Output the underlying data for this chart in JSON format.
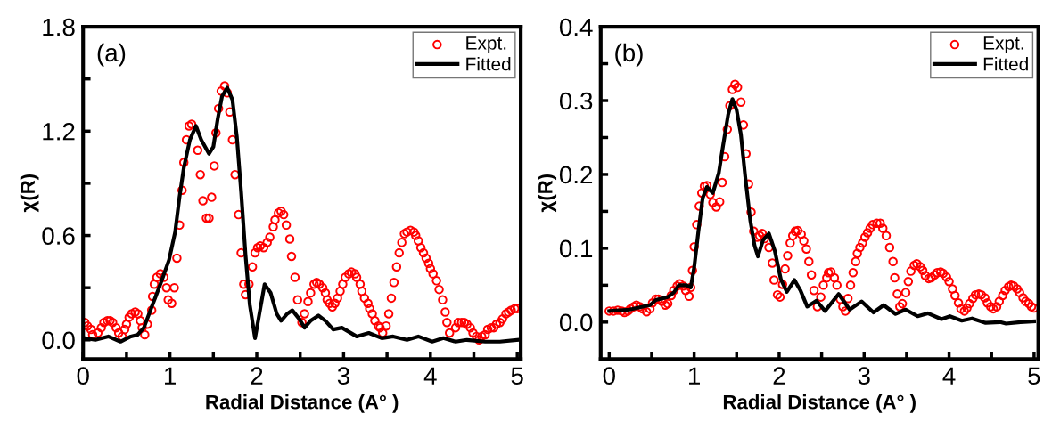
{
  "chart_data": [
    {
      "type": "scatter",
      "xlabel": "Radial Distance (A° )",
      "ylabel": "χ(R)",
      "annotations": [
        "(a)"
      ],
      "legend": "top right",
      "grid": false,
      "xlim": [
        0,
        5.04
      ],
      "ylim": [
        -0.11,
        1.8
      ],
      "xticks": [
        0,
        {
          "value": 0.5,
          "label": null
        },
        1,
        {
          "value": 1.5,
          "label": null
        },
        2,
        {
          "value": 2.5,
          "label": null
        },
        3,
        {
          "value": 3.5,
          "label": null
        },
        4,
        {
          "value": 4.5,
          "label": null
        },
        5
      ],
      "yticks": [
        {
          "value": 0,
          "label": "0.0"
        },
        {
          "value": 0.3,
          "label": null
        },
        {
          "value": 0.6,
          "label": "0.6"
        },
        {
          "value": 0.9,
          "label": null
        },
        {
          "value": 1.2,
          "label": "1.2"
        },
        {
          "value": 1.5,
          "label": null
        },
        {
          "value": 1.8,
          "label": "1.8"
        }
      ],
      "series": [
        {
          "name": "Expt.",
          "marker": "circle",
          "color": "#ff0000",
          "x": [
            0.02,
            0.05,
            0.09,
            0.11,
            0.17,
            0.21,
            0.24,
            0.28,
            0.31,
            0.34,
            0.38,
            0.41,
            0.45,
            0.48,
            0.5,
            0.53,
            0.56,
            0.6,
            0.63,
            0.66,
            0.68,
            0.71,
            0.74,
            0.79,
            0.8,
            0.82,
            0.85,
            0.89,
            0.93,
            0.96,
            0.98,
            1.02,
            1.05,
            1.08,
            1.11,
            1.14,
            1.16,
            1.19,
            1.22,
            1.25,
            1.32,
            1.35,
            1.38,
            1.42,
            1.45,
            1.48,
            1.51,
            1.53,
            1.56,
            1.59,
            1.63,
            1.66,
            1.69,
            1.72,
            1.75,
            1.79,
            1.82,
            1.85,
            1.87,
            1.91,
            1.95,
            1.98,
            2.01,
            2.04,
            2.08,
            2.12,
            2.15,
            2.19,
            2.21,
            2.25,
            2.28,
            2.31,
            2.34,
            2.38,
            2.4,
            2.44,
            2.47,
            2.52,
            2.55,
            2.59,
            2.62,
            2.66,
            2.69,
            2.72,
            2.76,
            2.79,
            2.81,
            2.84,
            2.87,
            2.9,
            2.93,
            2.96,
            2.99,
            3.02,
            3.06,
            3.09,
            3.13,
            3.15,
            3.19,
            3.21,
            3.24,
            3.28,
            3.3,
            3.33,
            3.36,
            3.4,
            3.42,
            3.45,
            3.49,
            3.52,
            3.55,
            3.58,
            3.61,
            3.64,
            3.67,
            3.7,
            3.73,
            3.77,
            3.81,
            3.83,
            3.86,
            3.89,
            3.92,
            3.95,
            3.98,
            4.0,
            4.03,
            4.07,
            4.1,
            4.14,
            4.17,
            4.19,
            4.22,
            4.29,
            4.32,
            4.36,
            4.39,
            4.42,
            4.46,
            4.49,
            4.53,
            4.56,
            4.59,
            4.63,
            4.66,
            4.7,
            4.73,
            4.76,
            4.8,
            4.83,
            4.87,
            4.9,
            4.93,
            4.97,
            5.0
          ],
          "values": [
            0.1,
            0.08,
            0.06,
            0.03,
            0.04,
            0.07,
            0.1,
            0.11,
            0.11,
            0.1,
            0.07,
            0.04,
            0.02,
            0.06,
            0.09,
            0.13,
            0.15,
            0.16,
            0.15,
            0.11,
            0.07,
            0.03,
            0.09,
            0.17,
            0.25,
            0.32,
            0.36,
            0.38,
            0.36,
            0.3,
            0.23,
            0.21,
            0.3,
            0.47,
            0.66,
            0.86,
            1.02,
            1.15,
            1.23,
            1.24,
            1.09,
            0.95,
            0.8,
            0.7,
            0.7,
            0.82,
            1.0,
            1.19,
            1.33,
            1.43,
            1.46,
            1.42,
            1.31,
            1.15,
            0.95,
            0.72,
            0.5,
            0.32,
            0.26,
            0.32,
            0.42,
            0.5,
            0.53,
            0.54,
            0.53,
            0.56,
            0.59,
            0.65,
            0.69,
            0.73,
            0.74,
            0.72,
            0.66,
            0.58,
            0.48,
            0.36,
            0.23,
            0.1,
            0.15,
            0.22,
            0.27,
            0.32,
            0.33,
            0.32,
            0.3,
            0.27,
            0.23,
            0.21,
            0.19,
            0.21,
            0.24,
            0.28,
            0.32,
            0.36,
            0.38,
            0.39,
            0.38,
            0.36,
            0.32,
            0.28,
            0.24,
            0.21,
            0.18,
            0.15,
            0.11,
            0.08,
            0.07,
            0.04,
            0.08,
            0.15,
            0.24,
            0.33,
            0.42,
            0.5,
            0.56,
            0.61,
            0.62,
            0.63,
            0.62,
            0.6,
            0.57,
            0.53,
            0.5,
            0.47,
            0.44,
            0.41,
            0.38,
            0.34,
            0.29,
            0.23,
            0.16,
            0.1,
            0.04,
            0.07,
            0.1,
            0.1,
            0.1,
            0.09,
            0.07,
            0.04,
            0.02,
            0.0,
            0.02,
            0.03,
            0.06,
            0.07,
            0.07,
            0.09,
            0.1,
            0.12,
            0.15,
            0.16,
            0.17,
            0.18,
            0.18
          ]
        },
        {
          "name": "Fitted",
          "type": "line",
          "marker": "none",
          "line_style": "solid",
          "color": "#000000",
          "x": [
            0.02,
            0.14,
            0.29,
            0.43,
            0.55,
            0.63,
            0.7,
            0.79,
            0.89,
            0.99,
            1.06,
            1.11,
            1.16,
            1.23,
            1.3,
            1.36,
            1.45,
            1.5,
            1.55,
            1.6,
            1.66,
            1.72,
            1.77,
            1.82,
            1.87,
            1.92,
            1.98,
            2.03,
            2.09,
            2.16,
            2.23,
            2.28,
            2.35,
            2.41,
            2.49,
            2.55,
            2.62,
            2.71,
            2.79,
            2.88,
            2.98,
            3.15,
            3.29,
            3.44,
            3.57,
            3.73,
            3.86,
            4.02,
            4.15,
            4.29,
            4.42,
            4.63,
            4.8,
            5.0
          ],
          "values": [
            0.01,
            0.0,
            0.02,
            -0.01,
            0.02,
            0.03,
            0.07,
            0.19,
            0.32,
            0.46,
            0.62,
            0.82,
            0.99,
            1.15,
            1.23,
            1.15,
            1.07,
            1.11,
            1.27,
            1.4,
            1.45,
            1.38,
            1.17,
            0.85,
            0.49,
            0.2,
            0.01,
            0.15,
            0.32,
            0.27,
            0.15,
            0.11,
            0.15,
            0.17,
            0.12,
            0.07,
            0.11,
            0.14,
            0.11,
            0.06,
            0.07,
            0.02,
            0.04,
            0.01,
            0.02,
            0.0,
            0.02,
            -0.01,
            0.01,
            -0.01,
            0.0,
            -0.01,
            -0.01,
            0.0
          ]
        }
      ]
    },
    {
      "type": "scatter",
      "xlabel": "Radial Distance (A° )",
      "ylabel": "χ(R)",
      "annotations": [
        "(b)"
      ],
      "legend": "top right",
      "grid": false,
      "xlim": [
        -0.1,
        5.05
      ],
      "ylim": [
        -0.05,
        0.4
      ],
      "xticks": [
        0,
        {
          "value": 0.5,
          "label": null
        },
        1,
        {
          "value": 1.5,
          "label": null
        },
        2,
        {
          "value": 2.5,
          "label": null
        },
        3,
        {
          "value": 3.5,
          "label": null
        },
        4,
        {
          "value": 4.5,
          "label": null
        },
        5
      ],
      "yticks": [
        {
          "value": 0,
          "label": "0.0"
        },
        {
          "value": 0.05,
          "label": null
        },
        {
          "value": 0.1,
          "label": "0.1"
        },
        {
          "value": 0.15,
          "label": null
        },
        {
          "value": 0.2,
          "label": "0.2"
        },
        {
          "value": 0.25,
          "label": null
        },
        {
          "value": 0.3,
          "label": "0.3"
        },
        {
          "value": 0.35,
          "label": null
        },
        {
          "value": 0.4,
          "label": "0.4"
        }
      ],
      "series": [
        {
          "name": "Expt.",
          "marker": "circle",
          "color": "#ff0000",
          "x": [
            0.0,
            0.05,
            0.1,
            0.15,
            0.18,
            0.22,
            0.25,
            0.29,
            0.32,
            0.36,
            0.39,
            0.44,
            0.48,
            0.51,
            0.55,
            0.58,
            0.62,
            0.66,
            0.69,
            0.73,
            0.76,
            0.8,
            0.83,
            0.87,
            0.9,
            0.94,
            0.96,
            0.98,
            1.0,
            1.03,
            1.06,
            1.09,
            1.12,
            1.15,
            1.19,
            1.22,
            1.26,
            1.3,
            1.33,
            1.36,
            1.39,
            1.42,
            1.45,
            1.48,
            1.51,
            1.55,
            1.58,
            1.61,
            1.64,
            1.67,
            1.7,
            1.74,
            1.77,
            1.8,
            1.83,
            1.88,
            1.92,
            1.94,
            1.98,
            2.01,
            2.04,
            2.07,
            2.1,
            2.13,
            2.16,
            2.19,
            2.22,
            2.26,
            2.29,
            2.32,
            2.35,
            2.38,
            2.41,
            2.45,
            2.49,
            2.52,
            2.56,
            2.58,
            2.61,
            2.65,
            2.68,
            2.72,
            2.75,
            2.78,
            2.81,
            2.84,
            2.87,
            2.9,
            2.92,
            2.95,
            2.98,
            3.01,
            3.04,
            3.07,
            3.1,
            3.15,
            3.19,
            3.22,
            3.26,
            3.3,
            3.34,
            3.36,
            3.39,
            3.42,
            3.45,
            3.49,
            3.52,
            3.55,
            3.59,
            3.62,
            3.66,
            3.69,
            3.72,
            3.76,
            3.79,
            3.83,
            3.86,
            3.9,
            3.93,
            3.97,
            4.0,
            4.04,
            4.07,
            4.11,
            4.14,
            4.18,
            4.21,
            4.24,
            4.28,
            4.31,
            4.35,
            4.38,
            4.42,
            4.45,
            4.49,
            4.52,
            4.56,
            4.59,
            4.63,
            4.66,
            4.7,
            4.73,
            4.76,
            4.8,
            4.83,
            4.87,
            4.9,
            4.94,
            4.97,
            5.0
          ],
          "values": [
            0.015,
            0.015,
            0.016,
            0.015,
            0.013,
            0.015,
            0.018,
            0.021,
            0.023,
            0.021,
            0.018,
            0.014,
            0.018,
            0.026,
            0.031,
            0.031,
            0.028,
            0.023,
            0.025,
            0.036,
            0.043,
            0.049,
            0.052,
            0.049,
            0.043,
            0.035,
            0.047,
            0.07,
            0.102,
            0.132,
            0.157,
            0.175,
            0.184,
            0.185,
            0.173,
            0.162,
            0.156,
            0.163,
            0.189,
            0.224,
            0.261,
            0.293,
            0.315,
            0.322,
            0.318,
            0.298,
            0.267,
            0.228,
            0.187,
            0.149,
            0.123,
            0.115,
            0.117,
            0.12,
            0.113,
            0.101,
            0.08,
            0.057,
            0.037,
            0.034,
            0.051,
            0.072,
            0.09,
            0.107,
            0.117,
            0.123,
            0.124,
            0.119,
            0.11,
            0.099,
            0.082,
            0.064,
            0.043,
            0.021,
            0.034,
            0.05,
            0.06,
            0.067,
            0.068,
            0.06,
            0.05,
            0.031,
            0.021,
            0.015,
            0.032,
            0.05,
            0.067,
            0.082,
            0.093,
            0.101,
            0.107,
            0.115,
            0.121,
            0.127,
            0.132,
            0.134,
            0.134,
            0.127,
            0.117,
            0.101,
            0.082,
            0.06,
            0.038,
            0.021,
            0.025,
            0.04,
            0.055,
            0.069,
            0.077,
            0.079,
            0.075,
            0.07,
            0.063,
            0.059,
            0.06,
            0.064,
            0.067,
            0.068,
            0.066,
            0.061,
            0.055,
            0.045,
            0.036,
            0.026,
            0.018,
            0.015,
            0.019,
            0.025,
            0.032,
            0.037,
            0.038,
            0.037,
            0.033,
            0.026,
            0.021,
            0.018,
            0.021,
            0.028,
            0.036,
            0.043,
            0.048,
            0.05,
            0.049,
            0.045,
            0.04,
            0.033,
            0.028,
            0.025,
            0.021,
            0.019
          ]
        },
        {
          "name": "Fitted",
          "type": "line",
          "marker": "none",
          "line_style": "solid",
          "color": "#000000",
          "x": [
            0,
            0.24,
            0.48,
            0.55,
            0.69,
            0.76,
            0.82,
            0.91,
            0.96,
            1.0,
            1.05,
            1.1,
            1.15,
            1.22,
            1.29,
            1.34,
            1.4,
            1.45,
            1.5,
            1.55,
            1.6,
            1.66,
            1.71,
            1.75,
            1.81,
            1.88,
            1.95,
            2.02,
            2.09,
            2.18,
            2.25,
            2.33,
            2.44,
            2.54,
            2.7,
            2.83,
            2.97,
            3.11,
            3.23,
            3.37,
            3.49,
            3.63,
            3.75,
            3.91,
            4.01,
            4.15,
            4.27,
            4.43,
            4.6,
            4.67,
            4.84,
            5.0
          ],
          "values": [
            0.015,
            0.017,
            0.023,
            0.03,
            0.034,
            0.04,
            0.05,
            0.05,
            0.047,
            0.074,
            0.123,
            0.168,
            0.183,
            0.175,
            0.202,
            0.239,
            0.281,
            0.302,
            0.287,
            0.254,
            0.198,
            0.138,
            0.104,
            0.089,
            0.111,
            0.12,
            0.096,
            0.058,
            0.041,
            0.057,
            0.043,
            0.021,
            0.029,
            0.015,
            0.038,
            0.017,
            0.028,
            0.013,
            0.023,
            0.011,
            0.017,
            0.008,
            0.012,
            0.004,
            0.008,
            0.002,
            0.005,
            -0.001,
            0.0,
            -0.002,
            0.0,
            0.001
          ]
        }
      ]
    }
  ]
}
